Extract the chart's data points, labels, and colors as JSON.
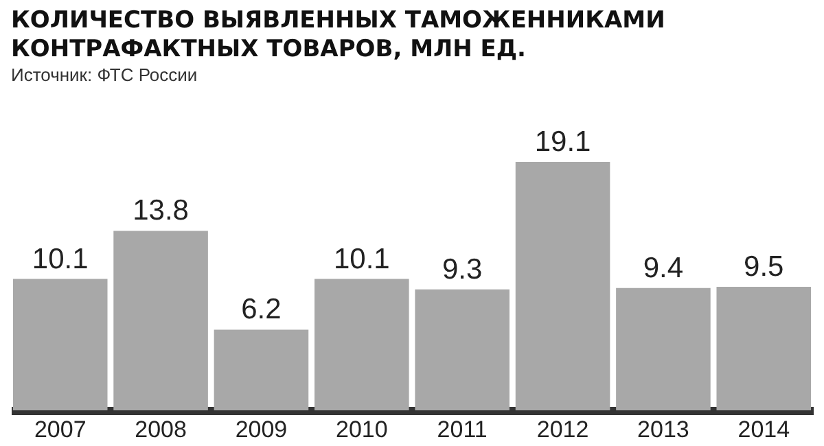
{
  "chart_data": {
    "type": "bar",
    "title": "КОЛИЧЕСТВО ВЫЯВЛЕННЫХ ТАМОЖЕННИКАМИ КОНТРАФАКТНЫХ ТОВАРОВ, МЛН ЕД.",
    "annotations": [
      "Источник: ФТС России"
    ],
    "categories": [
      "2007",
      "2008",
      "2009",
      "2010",
      "2011",
      "2012",
      "2013",
      "2014"
    ],
    "values": [
      10.1,
      13.8,
      6.2,
      10.1,
      9.3,
      19.1,
      9.4,
      9.5
    ],
    "color": "#a8a8a8",
    "data_labels": true
  }
}
